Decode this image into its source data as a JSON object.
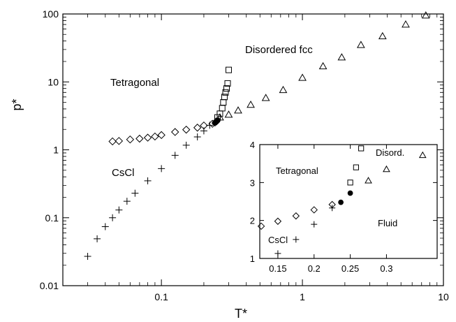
{
  "chart_data": [
    {
      "type": "scatter",
      "xlabel": "T*",
      "ylabel": "p*",
      "xscale": "log",
      "yscale": "log",
      "xlim": [
        0.02,
        10
      ],
      "ylim": [
        0.01,
        100
      ],
      "xticks": [
        0.1,
        1,
        10
      ],
      "xtick_labels": [
        "0.1",
        "1",
        "10"
      ],
      "yticks": [
        0.01,
        0.1,
        1,
        10,
        100
      ],
      "ytick_labels": [
        "0.01",
        "0.1",
        "1",
        "10",
        "100"
      ],
      "grid": false,
      "annotations": [
        "Tetragonal",
        "Disordered fcc",
        "CsCl"
      ],
      "series": [
        {
          "marker": "plus",
          "points": [
            [
              0.03,
              0.027
            ],
            [
              0.035,
              0.049
            ],
            [
              0.04,
              0.074
            ],
            [
              0.045,
              0.1
            ],
            [
              0.05,
              0.13
            ],
            [
              0.057,
              0.175
            ],
            [
              0.065,
              0.23
            ],
            [
              0.08,
              0.35
            ],
            [
              0.1,
              0.53
            ],
            [
              0.125,
              0.83
            ],
            [
              0.15,
              1.17
            ],
            [
              0.18,
              1.55
            ],
            [
              0.2,
              1.9
            ],
            [
              0.22,
              2.3
            ],
            [
              0.24,
              2.48
            ]
          ]
        },
        {
          "marker": "diamond",
          "points": [
            [
              0.045,
              1.33
            ],
            [
              0.05,
              1.35
            ],
            [
              0.06,
              1.42
            ],
            [
              0.07,
              1.46
            ],
            [
              0.08,
              1.51
            ],
            [
              0.09,
              1.57
            ],
            [
              0.1,
              1.65
            ],
            [
              0.125,
              1.83
            ],
            [
              0.15,
              1.98
            ],
            [
              0.18,
              2.12
            ],
            [
              0.2,
              2.28
            ],
            [
              0.23,
              2.42
            ]
          ]
        },
        {
          "marker": "filled-circle",
          "points": [
            [
              0.24,
              2.5
            ],
            [
              0.245,
              2.6
            ],
            [
              0.25,
              2.72
            ]
          ]
        },
        {
          "marker": "square",
          "points": [
            [
              0.25,
              3.0
            ],
            [
              0.26,
              3.4
            ],
            [
              0.27,
              4.1
            ],
            [
              0.275,
              5.0
            ],
            [
              0.28,
              6.0
            ],
            [
              0.285,
              7.0
            ],
            [
              0.29,
              8.0
            ],
            [
              0.295,
              9.5
            ],
            [
              0.3,
              15
            ]
          ]
        },
        {
          "marker": "triangle",
          "points": [
            [
              0.26,
              3.0
            ],
            [
              0.3,
              3.3
            ],
            [
              0.35,
              3.8
            ],
            [
              0.43,
              4.6
            ],
            [
              0.55,
              5.8
            ],
            [
              0.73,
              7.6
            ],
            [
              1.0,
              11.5
            ],
            [
              1.4,
              17
            ],
            [
              1.9,
              23
            ],
            [
              2.6,
              35
            ],
            [
              3.7,
              47
            ],
            [
              5.4,
              70
            ],
            [
              7.5,
              95
            ]
          ]
        }
      ]
    },
    {
      "type": "scatter",
      "role": "inset",
      "xscale": "linear",
      "yscale": "linear",
      "xlim": [
        0.125,
        0.37
      ],
      "ylim": [
        1,
        4
      ],
      "xticks": [
        0.15,
        0.2,
        0.25,
        0.3
      ],
      "xtick_labels": [
        "0.15",
        "0.2",
        "0.25",
        "0.3"
      ],
      "yticks": [
        1,
        2,
        3,
        4
      ],
      "ytick_labels": [
        "1",
        "2",
        "3",
        "4"
      ],
      "grid": false,
      "annotations": [
        "Tetragonal",
        "Disord.",
        "Fluid",
        "CsCl"
      ],
      "series": [
        {
          "marker": "plus",
          "points": [
            [
              0.15,
              1.13
            ],
            [
              0.175,
              1.5
            ],
            [
              0.2,
              1.9
            ],
            [
              0.225,
              2.33
            ]
          ]
        },
        {
          "marker": "diamond",
          "points": [
            [
              0.127,
              1.85
            ],
            [
              0.15,
              1.98
            ],
            [
              0.175,
              2.12
            ],
            [
              0.2,
              2.28
            ],
            [
              0.225,
              2.42
            ]
          ]
        },
        {
          "marker": "filled-circle",
          "points": [
            [
              0.237,
              2.48
            ],
            [
              0.25,
              2.72
            ]
          ]
        },
        {
          "marker": "square",
          "points": [
            [
              0.25,
              3.0
            ],
            [
              0.258,
              3.4
            ],
            [
              0.265,
              3.9
            ]
          ]
        },
        {
          "marker": "triangle",
          "points": [
            [
              0.275,
              3.05
            ],
            [
              0.3,
              3.35
            ],
            [
              0.35,
              3.72
            ]
          ]
        }
      ]
    }
  ]
}
